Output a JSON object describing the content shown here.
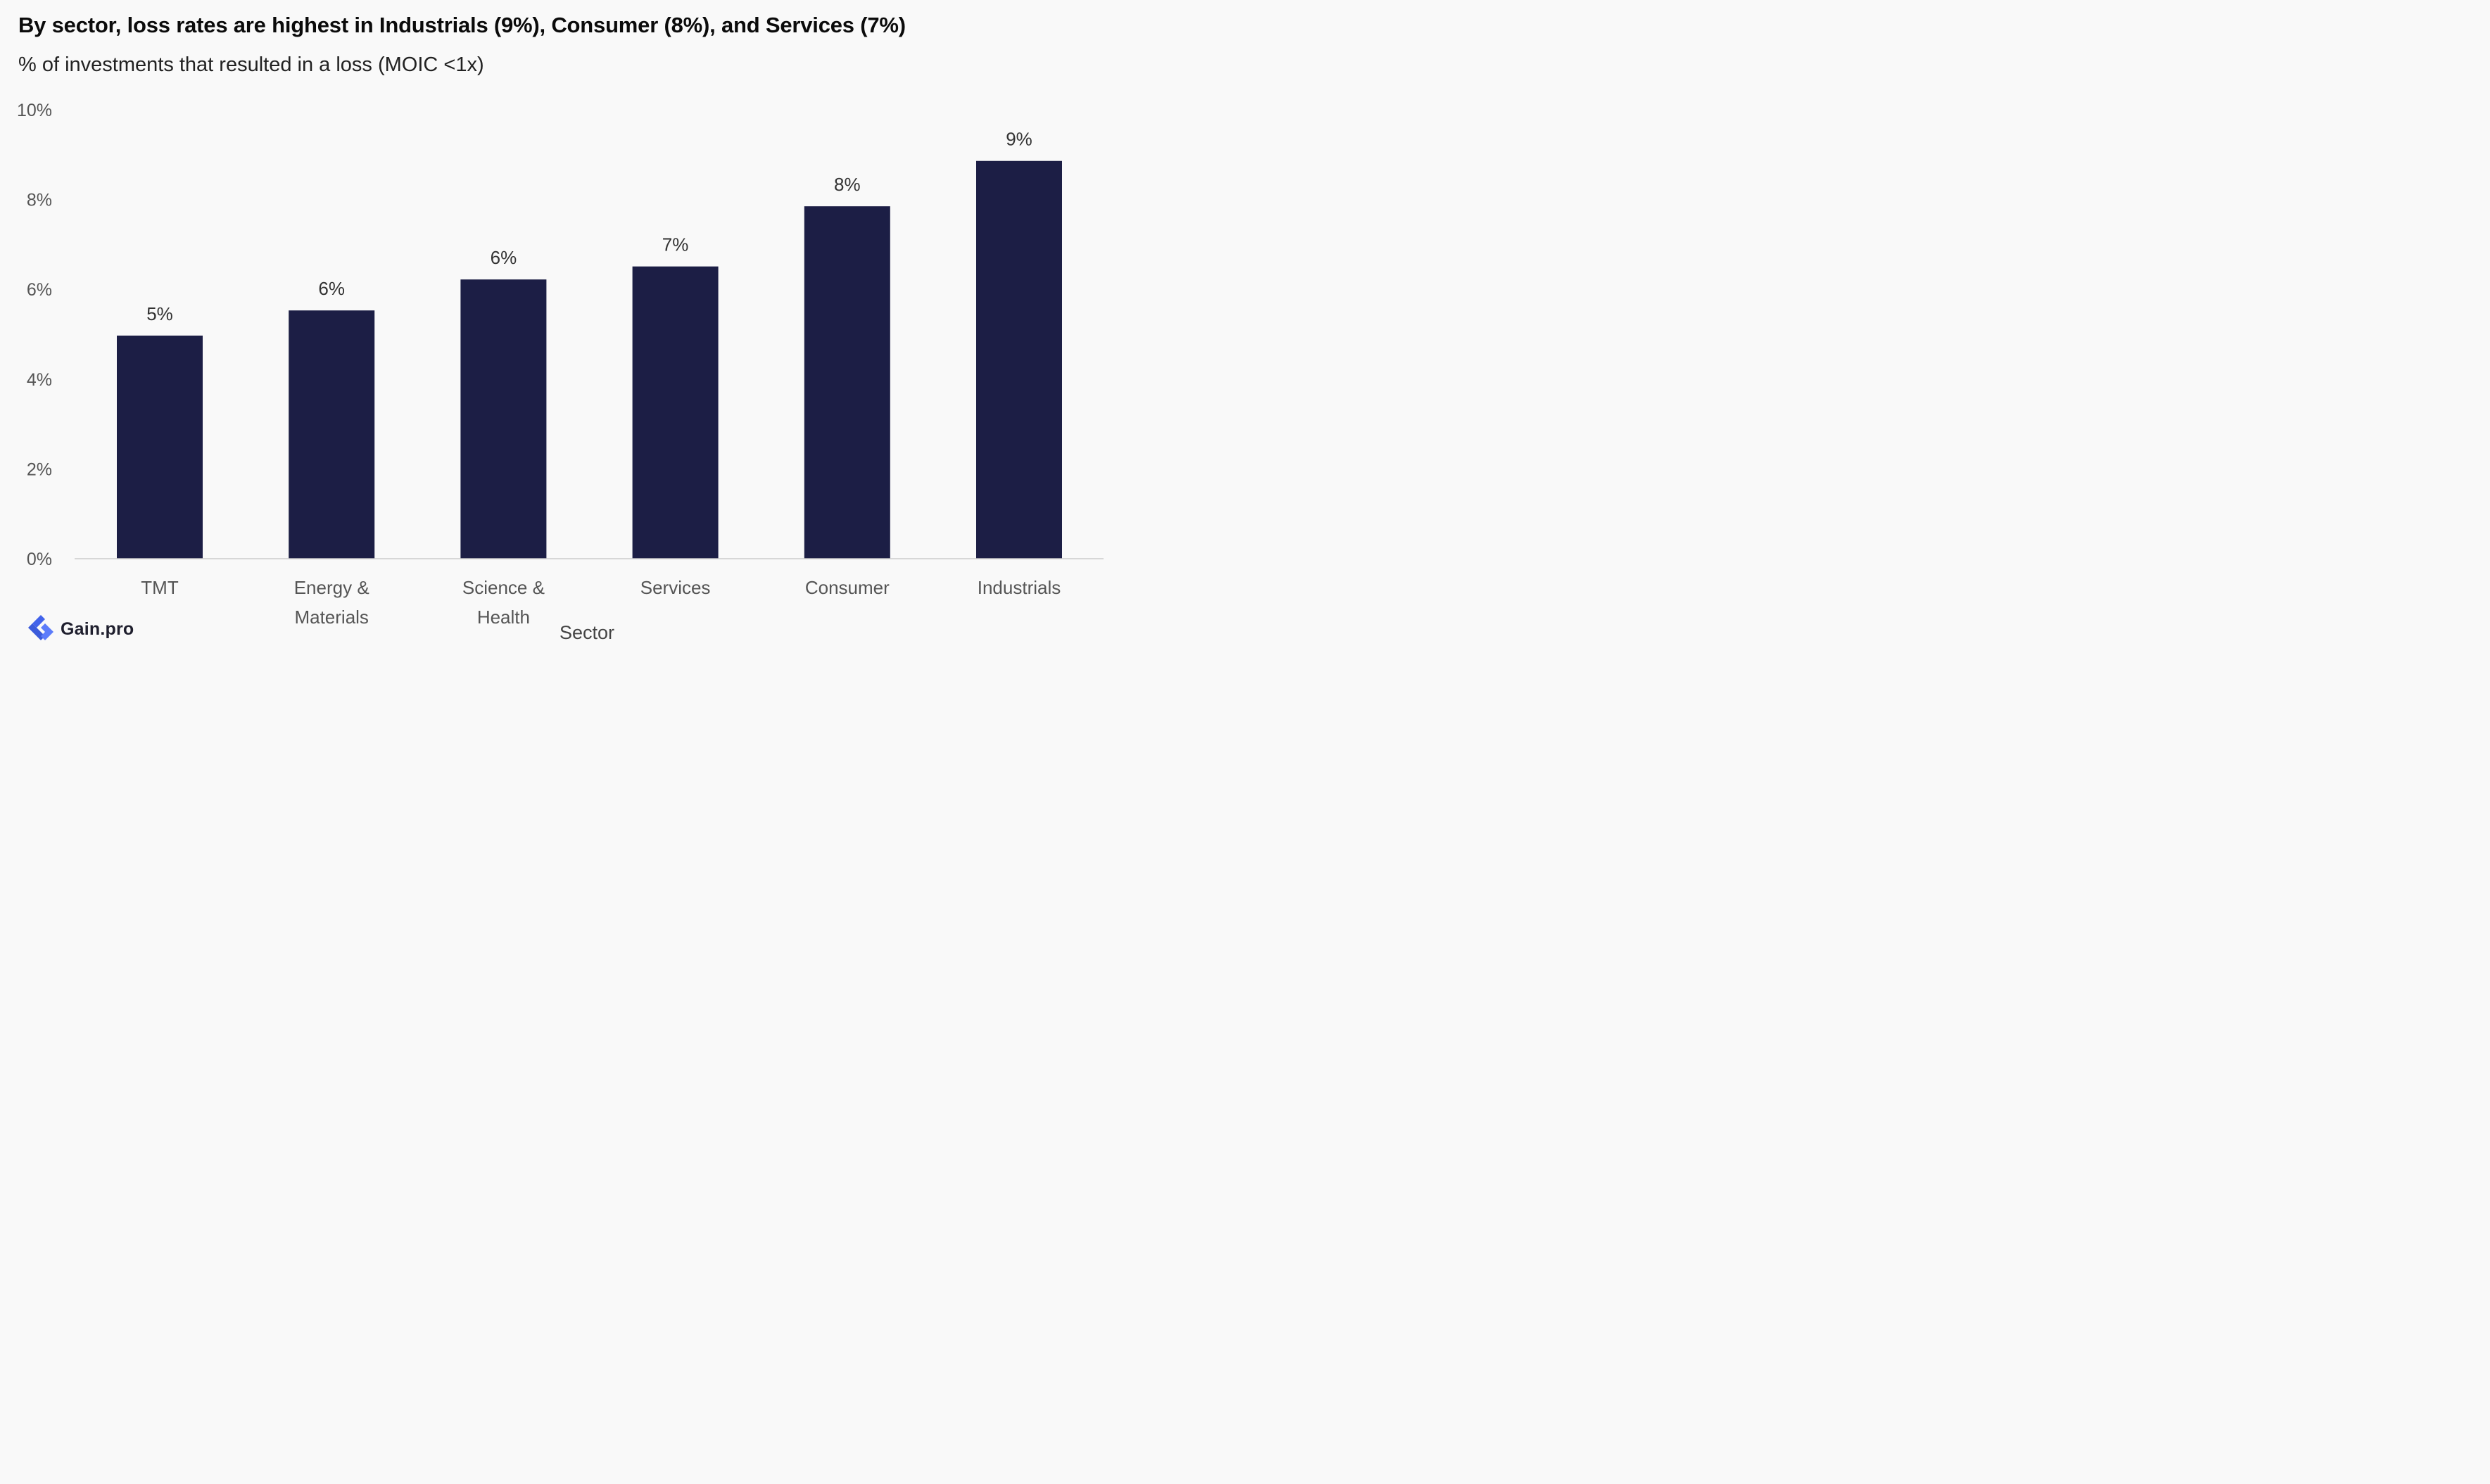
{
  "title": "By sector, loss rates are highest in Industrials (9%), Consumer (8%), and Services (7%)",
  "subtitle": "% of investments that resulted in a loss (MOIC <1x)",
  "brand": {
    "name": "Gain.pro",
    "icon": "gain-pro-logo-icon",
    "color": "#3b5bdb"
  },
  "colors": {
    "bar": "#1c1e45",
    "axis_text": "#555555",
    "label_text": "#333333",
    "baseline": "#cccccc"
  },
  "chart_data": {
    "type": "bar",
    "title": "By sector, loss rates are highest in Industrials (9%), Consumer (8%), and Services (7%)",
    "subtitle": "% of investments that resulted in a loss (MOIC <1x)",
    "xlabel": "Sector",
    "ylabel": "",
    "categories": [
      [
        "TMT"
      ],
      [
        "Energy &",
        "Materials"
      ],
      [
        "Science &",
        "Health"
      ],
      [
        "Services"
      ],
      [
        "Consumer"
      ],
      [
        "Industrials"
      ]
    ],
    "values": [
      4.97,
      5.53,
      6.22,
      6.51,
      7.85,
      8.86
    ],
    "data_labels": [
      "5%",
      "6%",
      "6%",
      "7%",
      "8%",
      "9%"
    ],
    "ylim": [
      0,
      10
    ],
    "yticks": [
      0,
      2,
      4,
      6,
      8,
      10
    ],
    "ytick_labels": [
      "0%",
      "2%",
      "4%",
      "6%",
      "8%",
      "10%"
    ],
    "grid": false,
    "legend": "none"
  }
}
